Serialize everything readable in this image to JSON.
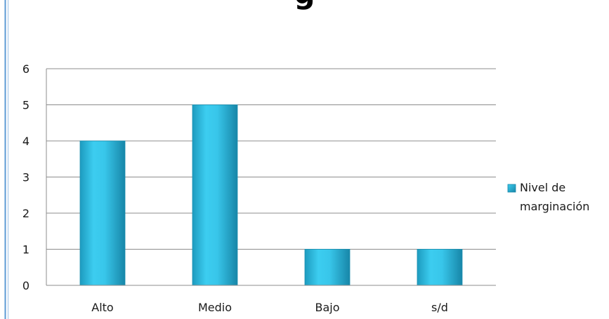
{
  "chart_data": {
    "type": "bar",
    "title": "g",
    "categories": [
      "Alto",
      "Medio",
      "Bajo",
      "s/d"
    ],
    "series": [
      {
        "name": "Nivel de marginación",
        "values": [
          4,
          5,
          1,
          1
        ]
      }
    ],
    "legend_lines": [
      "Nivel de",
      "marginación"
    ],
    "yticks": [
      "0",
      "1",
      "2",
      "3",
      "4",
      "5",
      "6"
    ],
    "ylim": [
      0,
      6
    ],
    "grid": true,
    "legend_position": "right",
    "colors": {
      "bar_light": "#4fd9f5",
      "bar_mid": "#2bbde0",
      "bar_dark": "#1a8fb0",
      "frame": "#5b9ad5",
      "grid": "#8c8c8c"
    }
  }
}
